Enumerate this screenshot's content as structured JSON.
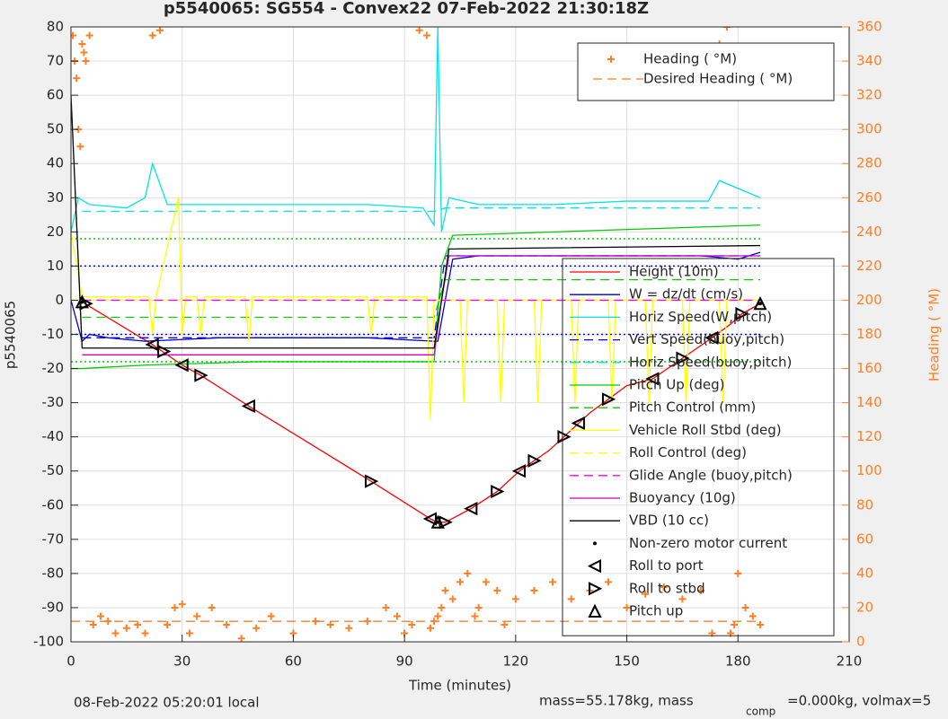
{
  "chart_data": {
    "type": "line",
    "title": "p5540065: SG554 - Convex22 07-Feb-2022 21:30:18Z",
    "xlabel": "Time (minutes)",
    "ylabel": "p5540065",
    "y2label": "Heading ( °M)",
    "footer_left": "08-Feb-2022 05:20:01 local",
    "footer_right": "mass=55.178kg, mass",
    "footer_sub": "comp",
    "footer_tail": "=0.000kg, volmax=5",
    "xlim": [
      0,
      210
    ],
    "xticks": [
      0,
      30,
      60,
      90,
      120,
      150,
      180,
      210
    ],
    "ylim": [
      -100,
      80
    ],
    "yticks": [
      -100,
      -90,
      -80,
      -70,
      -60,
      -50,
      -40,
      -30,
      -20,
      -10,
      0,
      10,
      20,
      30,
      40,
      50,
      60,
      70,
      80
    ],
    "y2lim": [
      0,
      360
    ],
    "y2ticks": [
      0,
      20,
      40,
      60,
      80,
      100,
      120,
      140,
      160,
      180,
      200,
      220,
      240,
      260,
      280,
      300,
      320,
      340,
      360
    ],
    "grid": true,
    "hlines": [
      {
        "value": 10,
        "color": "#0000ff"
      },
      {
        "value": -10,
        "color": "#0000ff"
      },
      {
        "value": 18,
        "color": "#00cc00"
      },
      {
        "value": -18,
        "color": "#00cc00"
      }
    ],
    "series": [
      {
        "name": "Heading ( °M)",
        "color": "#ff7f27",
        "style": "plus",
        "axis": "y2",
        "x": [
          0.5,
          1,
          1.5,
          2,
          2.5,
          3,
          3.5,
          4,
          5,
          6,
          8,
          10,
          12,
          15,
          18,
          20,
          22,
          24,
          26,
          28,
          30,
          32,
          34,
          38,
          42,
          46,
          50,
          54,
          60,
          66,
          70,
          75,
          80,
          85,
          88,
          90,
          92,
          94,
          96,
          97,
          98,
          99,
          100,
          101,
          103,
          105,
          107,
          109,
          110,
          112,
          115,
          117,
          120,
          125,
          130,
          135,
          140,
          145,
          150,
          155,
          160,
          165,
          170,
          173,
          175,
          177,
          178,
          179,
          180,
          182,
          184,
          186
        ],
        "values": [
          355,
          340,
          330,
          300,
          290,
          350,
          345,
          340,
          355,
          10,
          15,
          12,
          5,
          8,
          10,
          5,
          355,
          358,
          10,
          20,
          22,
          5,
          15,
          20,
          10,
          2,
          8,
          15,
          5,
          12,
          10,
          8,
          12,
          20,
          15,
          5,
          10,
          358,
          355,
          8,
          12,
          15,
          20,
          30,
          25,
          35,
          40,
          15,
          20,
          35,
          30,
          10,
          25,
          30,
          35,
          25,
          30,
          35,
          20,
          28,
          32,
          25,
          30,
          5,
          350,
          360,
          5,
          10,
          40,
          20,
          15,
          10
        ]
      },
      {
        "name": "Desired Heading ( °M)",
        "color": "#ff7f27",
        "style": "dashed",
        "axis": "y2",
        "x": [
          0,
          186
        ],
        "values": [
          12,
          12
        ]
      },
      {
        "name": "Height (10m)",
        "color": "#ff0000",
        "style": "solid",
        "x": [
          3,
          22,
          30,
          35,
          48,
          81,
          97,
          99,
          100,
          101,
          108,
          115,
          121,
          125,
          129,
          133,
          137,
          140,
          145,
          150,
          157,
          165,
          173,
          178,
          181,
          186
        ],
        "values": [
          -0.5,
          -13,
          -19,
          -22,
          -31,
          -53,
          -64,
          -65,
          -65,
          -65,
          -61,
          -56,
          -50,
          -47,
          -44,
          -40,
          -36,
          -33,
          -29,
          -25,
          -23,
          -17,
          -11,
          -7,
          -4,
          -1
        ]
      },
      {
        "name": "W = dz/dt (cm/s)",
        "color": "#0000cc",
        "style": "solid",
        "x": [
          0,
          3,
          5,
          10,
          20,
          40,
          60,
          80,
          98,
          99,
          101,
          103,
          110,
          130,
          150,
          170,
          180,
          186
        ],
        "values": [
          0,
          -12,
          -10,
          -11,
          -12,
          -11,
          -11,
          -11,
          -12,
          -12,
          0,
          12,
          13,
          13,
          13,
          13,
          12,
          14
        ]
      },
      {
        "name": "Horiz Speed(W,pitch)",
        "color": "#00e5e5",
        "style": "solid",
        "x": [
          0,
          2,
          5,
          15,
          20,
          22,
          26,
          40,
          60,
          80,
          95,
          98,
          99,
          100,
          102,
          110,
          130,
          150,
          172,
          175,
          186
        ],
        "values": [
          20,
          30,
          28,
          27,
          30,
          40,
          28,
          28,
          28,
          28,
          27,
          22,
          80,
          20,
          30,
          28,
          28,
          29,
          29,
          35,
          30
        ]
      },
      {
        "name": "Vert Speed(buoy,pitch)",
        "color": "#0000ff",
        "style": "dashed",
        "x": [
          3,
          98,
          101,
          186
        ],
        "values": [
          -11,
          -11,
          13,
          13
        ]
      },
      {
        "name": "Horiz Speed(buoy,pitch)",
        "color": "#00e5e5",
        "style": "dashed",
        "x": [
          3,
          98,
          101,
          186
        ],
        "values": [
          26,
          26,
          27,
          27
        ]
      },
      {
        "name": "Pitch Up (deg)",
        "color": "#00cc00",
        "style": "solid",
        "x": [
          0,
          3,
          20,
          50,
          98,
          100,
          103,
          186
        ],
        "values": [
          -20,
          -20,
          -19,
          -18,
          -18,
          10,
          19,
          22
        ]
      },
      {
        "name": "Pitch Control (mm)",
        "color": "#00cc00",
        "style": "dashed",
        "x": [
          3,
          98,
          101,
          186
        ],
        "values": [
          -5,
          -5,
          6,
          6
        ]
      },
      {
        "name": "Vehicle Roll Stbd (deg)",
        "color": "#ffff00",
        "style": "solid",
        "x": [
          0,
          3,
          21,
          22,
          23,
          29,
          30,
          31,
          34,
          35,
          36,
          47,
          48,
          49,
          80,
          81,
          82,
          96,
          97,
          98,
          100,
          105,
          106,
          107,
          115,
          116,
          117,
          125,
          126,
          127,
          135,
          136,
          137,
          145,
          146,
          147,
          155,
          156,
          157,
          165,
          166,
          167,
          175,
          176,
          177,
          186
        ],
        "values": [
          20,
          1,
          1,
          -10,
          1,
          30,
          -10,
          1,
          1,
          -10,
          1,
          1,
          -12,
          1,
          1,
          -10,
          1,
          1,
          -35,
          0,
          0,
          0,
          -30,
          0,
          0,
          -30,
          0,
          0,
          -30,
          0,
          0,
          -30,
          0,
          0,
          -30,
          0,
          0,
          -30,
          0,
          0,
          -30,
          0,
          0,
          -30,
          0,
          0
        ]
      },
      {
        "name": "Roll Control (deg)",
        "color": "#ffff00",
        "style": "dashed",
        "x": [
          0,
          186
        ],
        "values": [
          0,
          0
        ]
      },
      {
        "name": "Glide Angle (buoy,pitch)",
        "color": "#ff00ff",
        "style": "dashed",
        "x": [
          3,
          186
        ],
        "values": [
          0,
          0
        ]
      },
      {
        "name": "Buoyancy (10g)",
        "color": "#cc00cc",
        "style": "solid",
        "x": [
          3,
          98,
          100,
          102,
          186
        ],
        "values": [
          -16,
          -16,
          0,
          13,
          13
        ]
      },
      {
        "name": "VBD (10 cc)",
        "color": "#000000",
        "style": "solid",
        "x": [
          0,
          3,
          98,
          100,
          102,
          186
        ],
        "values": [
          60,
          -14,
          -14,
          0,
          15,
          16
        ]
      },
      {
        "name": "Non-zero motor current",
        "color": "#000000",
        "style": "dot",
        "x": [
          3,
          99,
          186
        ],
        "values": [
          -0.5,
          -65,
          -1
        ]
      },
      {
        "name": "Roll to port",
        "color": "#000000",
        "style": "tri-left",
        "x": [
          22,
          30,
          48,
          97,
          108,
          121,
          137,
          157,
          173
        ],
        "values": [
          -13,
          -19,
          -31,
          -64,
          -61,
          -50,
          -36,
          -23,
          -11
        ]
      },
      {
        "name": "Roll to stbd",
        "color": "#000000",
        "style": "tri-right",
        "x": [
          4,
          25,
          35,
          81,
          101,
          115,
          125,
          133,
          145,
          165,
          181
        ],
        "values": [
          -1,
          -15,
          -22,
          -53,
          -65,
          -56,
          -47,
          -40,
          -29,
          -17,
          -4
        ]
      },
      {
        "name": "Pitch up",
        "color": "#000000",
        "style": "tri-up",
        "x": [
          3,
          99,
          186
        ],
        "values": [
          -0.5,
          -65,
          -1
        ]
      }
    ]
  }
}
